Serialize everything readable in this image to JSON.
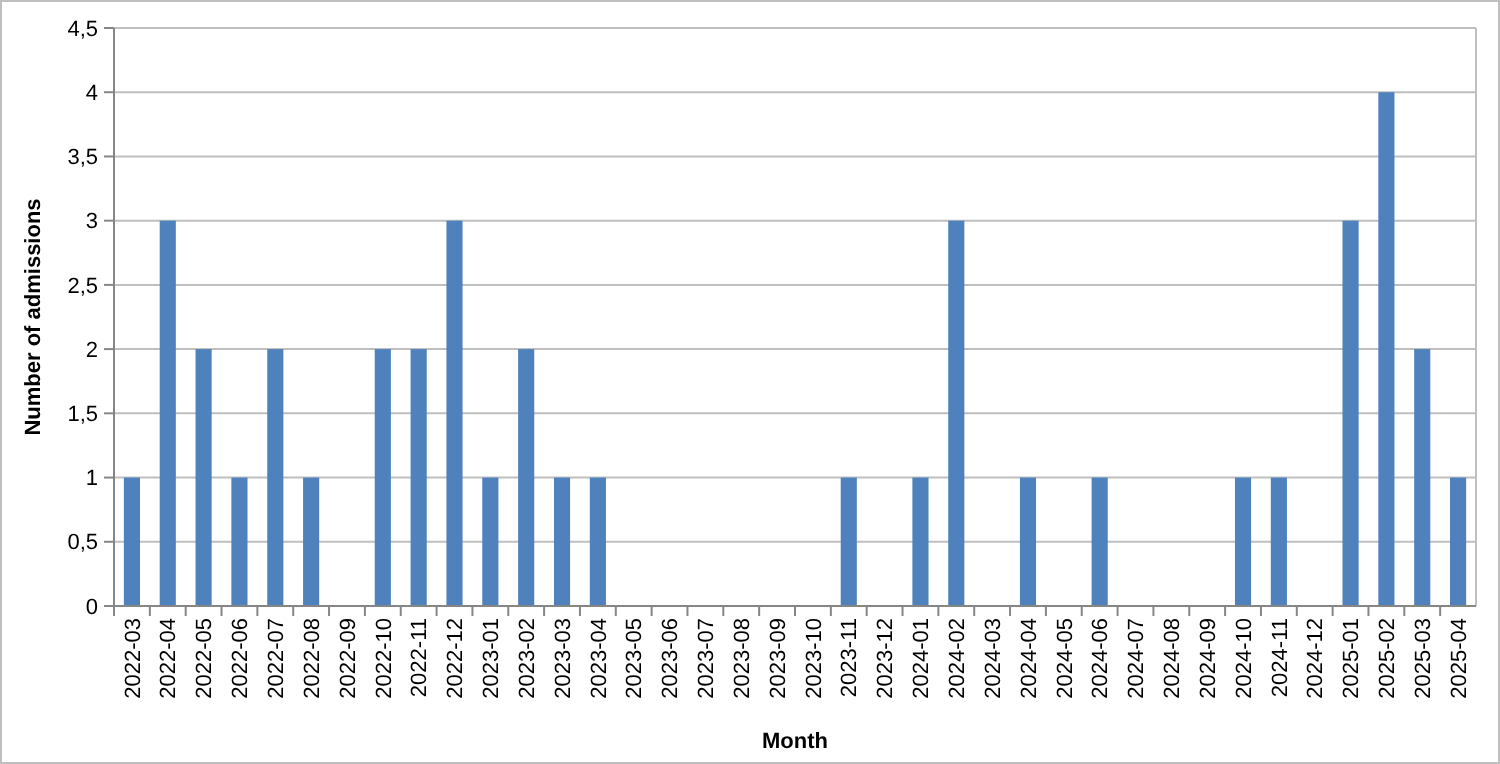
{
  "chart_data": {
    "type": "bar",
    "xlabel": "Month",
    "ylabel": "Number of admissions",
    "categories": [
      "2022-03",
      "2022-04",
      "2022-05",
      "2022-06",
      "2022-07",
      "2022-08",
      "2022-09",
      "2022-10",
      "2022-11",
      "2022-12",
      "2023-01",
      "2023-02",
      "2023-03",
      "2023-04",
      "2023-05",
      "2023-06",
      "2023-07",
      "2023-08",
      "2023-09",
      "2023-10",
      "2023-11",
      "2023-12",
      "2024-01",
      "2024-02",
      "2024-03",
      "2024-04",
      "2024-05",
      "2024-06",
      "2024-07",
      "2024-08",
      "2024-09",
      "2024-10",
      "2024-11",
      "2024-12",
      "2025-01",
      "2025-02",
      "2025-03",
      "2025-04"
    ],
    "values": [
      1,
      3,
      2,
      1,
      2,
      1,
      0,
      2,
      2,
      3,
      1,
      2,
      1,
      1,
      0,
      0,
      0,
      0,
      0,
      0,
      1,
      0,
      1,
      3,
      0,
      1,
      0,
      1,
      0,
      0,
      0,
      1,
      1,
      0,
      3,
      4,
      2,
      1
    ],
    "color": "#4f81bd",
    "ylim": [
      0,
      4.5
    ],
    "yticks": [
      0,
      {
        "value": 0.5,
        "label": "0,5"
      },
      1,
      {
        "value": 1.5,
        "label": "1,5"
      },
      2,
      {
        "value": 2.5,
        "label": "2,5"
      },
      3,
      {
        "value": 3.5,
        "label": "3,5"
      },
      4,
      {
        "value": 4.5,
        "label": "4,5"
      }
    ],
    "grid": "y"
  }
}
